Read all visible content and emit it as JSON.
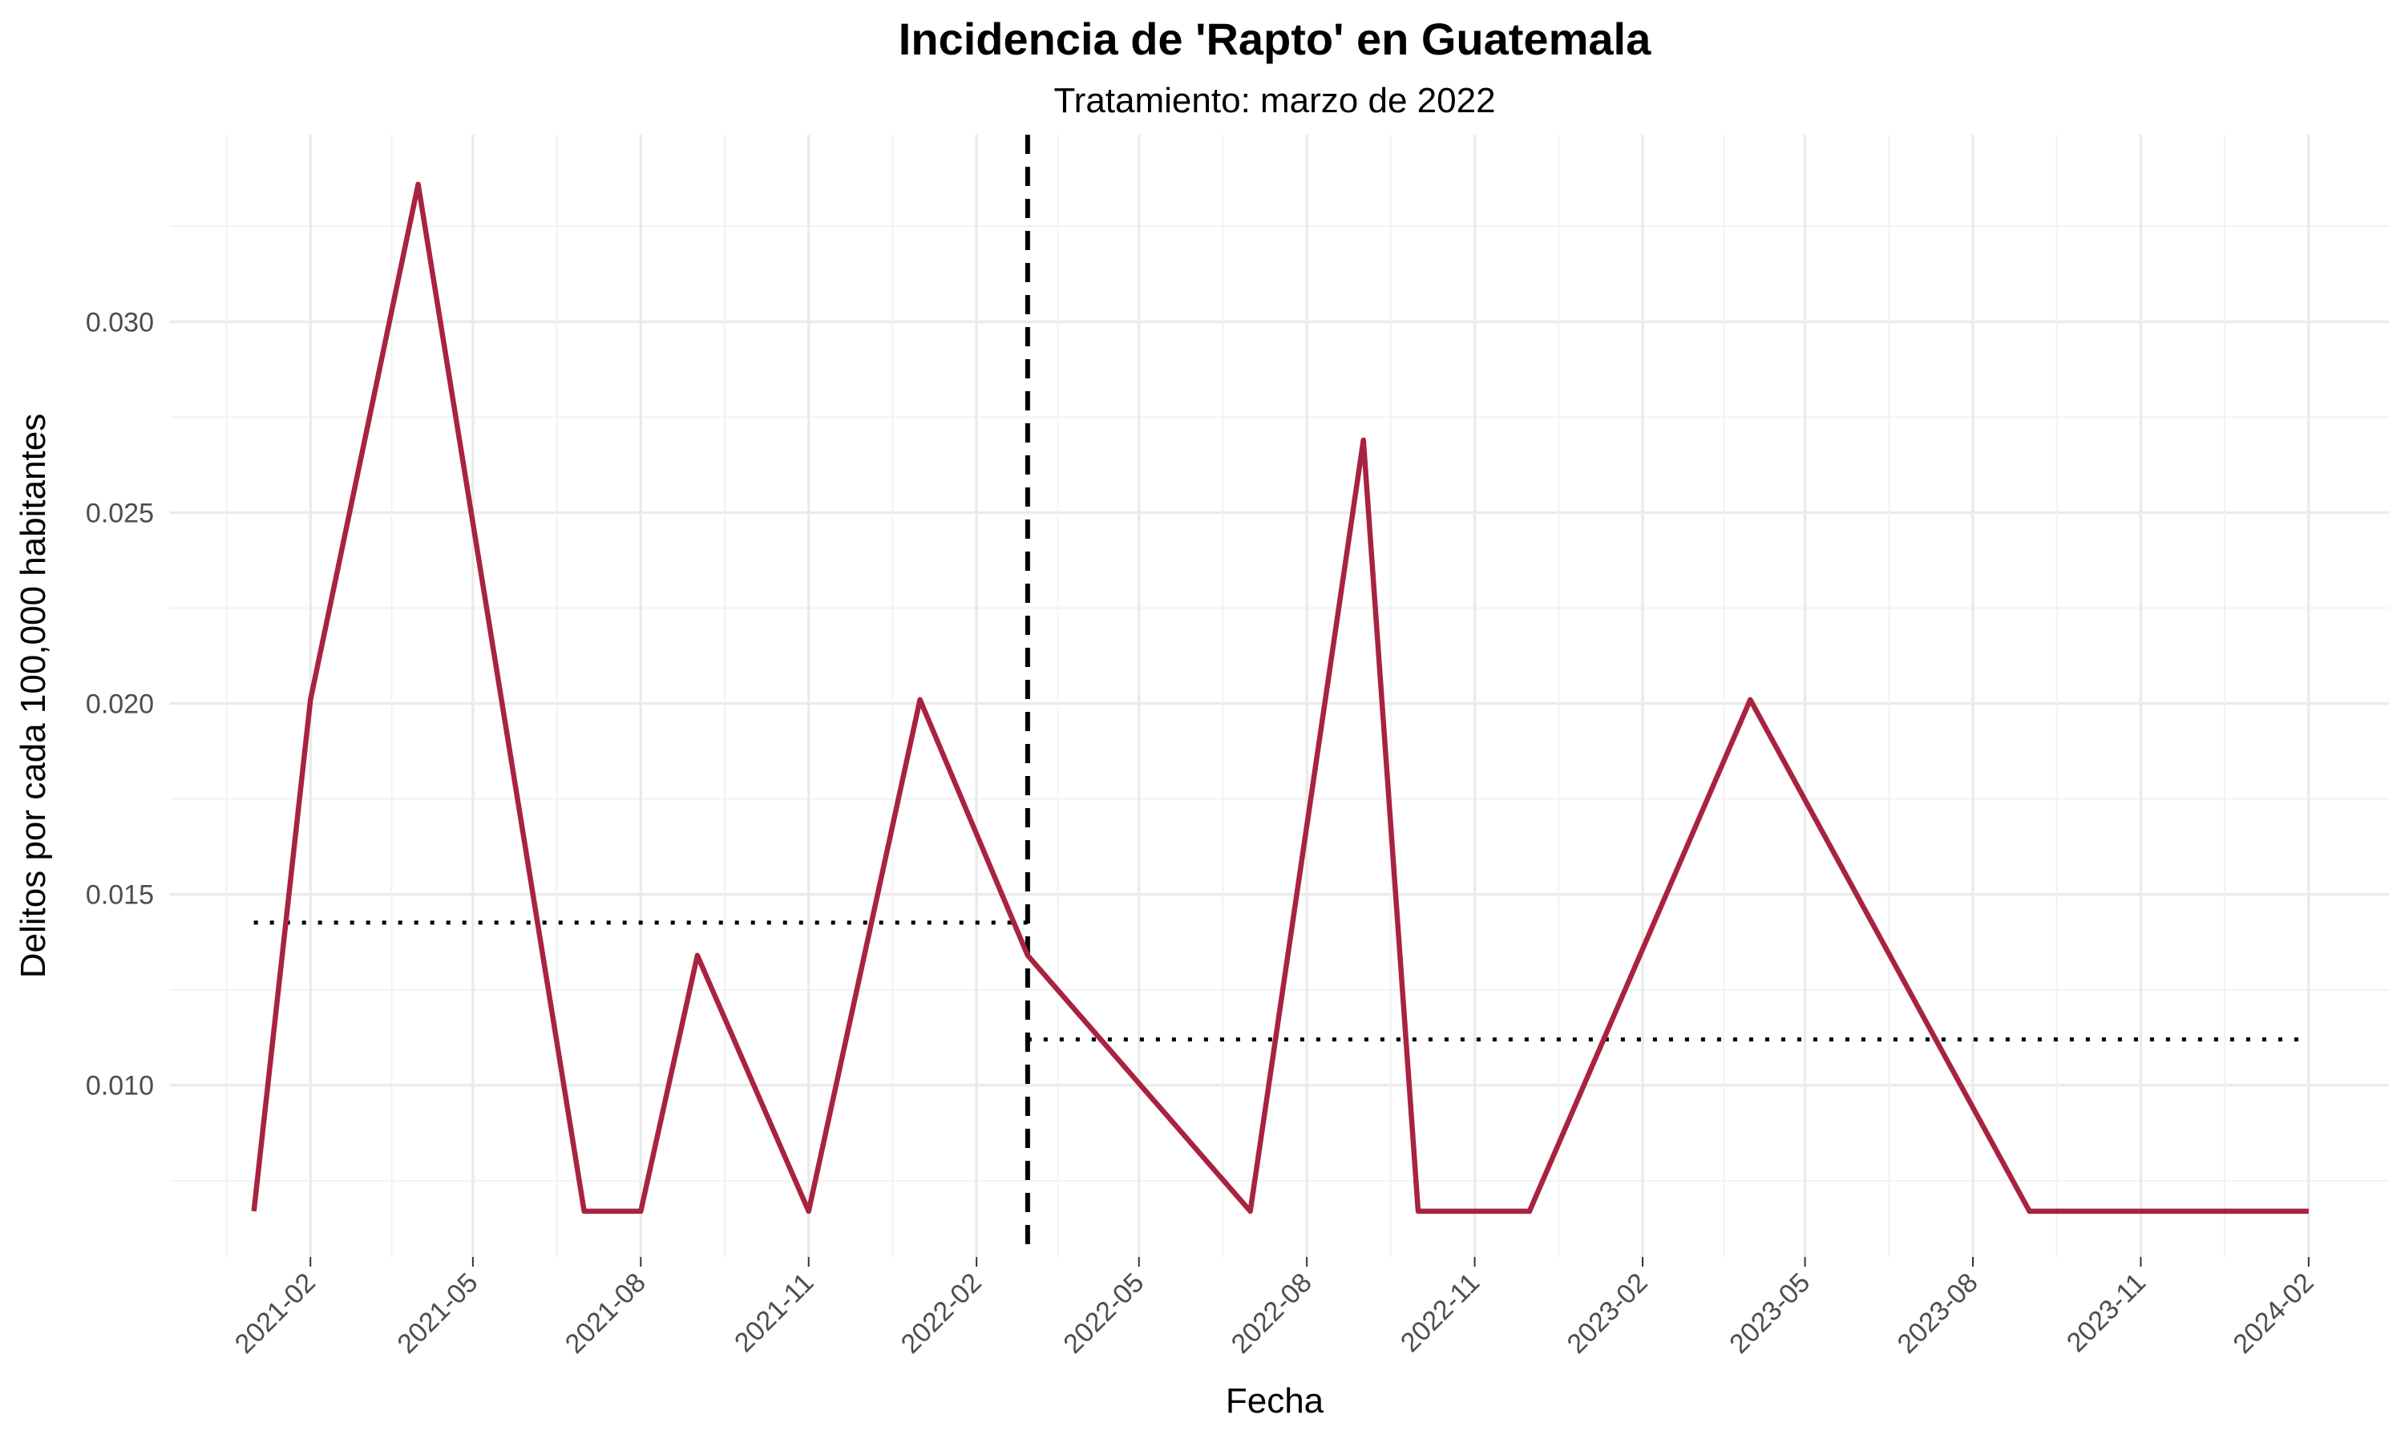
{
  "chart_data": {
    "type": "line",
    "title": "Incidencia de 'Rapto' en Guatemala",
    "subtitle": "Tratamiento: marzo de 2022",
    "xlabel": "Fecha",
    "ylabel": "Delitos por cada 100,000 habitantes",
    "xlim": [
      "2020-11-16",
      "2024-03-16"
    ],
    "ylim": [
      0.0055,
      0.0349
    ],
    "x_ticks": [
      "2021-02",
      "2021-05",
      "2021-08",
      "2021-11",
      "2022-02",
      "2022-05",
      "2022-08",
      "2022-11",
      "2023-02",
      "2023-05",
      "2023-08",
      "2023-11",
      "2024-02"
    ],
    "y_ticks": [
      "0.010",
      "0.015",
      "0.020",
      "0.025",
      "0.030"
    ],
    "grid": true,
    "series": [
      {
        "color": "#a8233f",
        "points": [
          {
            "x": "2021-01-01",
            "y": 0.0067
          },
          {
            "x": "2021-02-01",
            "y": 0.0201
          },
          {
            "x": "2021-04-01",
            "y": 0.0336
          },
          {
            "x": "2021-07-01",
            "y": 0.0067
          },
          {
            "x": "2021-08-01",
            "y": 0.0067
          },
          {
            "x": "2021-09-01",
            "y": 0.0134
          },
          {
            "x": "2021-11-01",
            "y": 0.0067
          },
          {
            "x": "2022-01-01",
            "y": 0.0201
          },
          {
            "x": "2022-03-01",
            "y": 0.0134
          },
          {
            "x": "2022-07-01",
            "y": 0.0067
          },
          {
            "x": "2022-09-01",
            "y": 0.0269
          },
          {
            "x": "2022-10-01",
            "y": 0.0067
          },
          {
            "x": "2022-12-01",
            "y": 0.0067
          },
          {
            "x": "2023-04-01",
            "y": 0.0201
          },
          {
            "x": "2023-09-01",
            "y": 0.0067
          },
          {
            "x": "2024-02-01",
            "y": 0.0067
          }
        ]
      }
    ],
    "reference_lines": {
      "treatment_date": "2022-03-01",
      "pre_mean": {
        "from": "2021-01-01",
        "to": "2022-03-01",
        "y": 0.01426
      },
      "post_mean": {
        "from": "2022-03-01",
        "to": "2024-02-01",
        "y": 0.0112
      }
    }
  }
}
